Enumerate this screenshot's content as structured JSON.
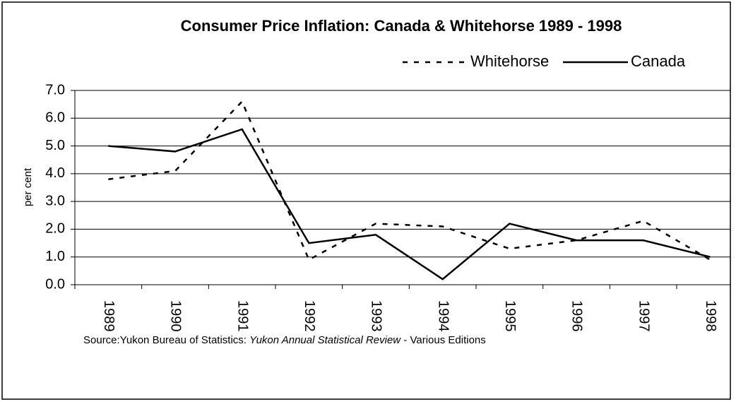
{
  "chart_data": {
    "type": "line",
    "title": "Consumer Price Inflation: Canada & Whitehorse 1989 - 1998",
    "y_label": "per cent",
    "categories": [
      "1989",
      "1990",
      "1991",
      "1992",
      "1993",
      "1994",
      "1995",
      "1996",
      "1997",
      "1998"
    ],
    "series": [
      {
        "name": "Whitehorse",
        "color": "#000000",
        "dash": "dashed",
        "values": [
          3.8,
          4.1,
          6.6,
          0.9,
          2.2,
          2.1,
          1.3,
          1.6,
          2.3,
          0.9
        ]
      },
      {
        "name": "Canada",
        "color": "#000000",
        "dash": "solid",
        "values": [
          5.0,
          4.8,
          5.6,
          1.5,
          1.8,
          0.2,
          2.2,
          1.6,
          1.6,
          1.0
        ]
      }
    ],
    "ylim": [
      0,
      7
    ],
    "yticks": [
      {
        "value": 0,
        "label": "0.0"
      },
      {
        "value": 1,
        "label": "1.0"
      },
      {
        "value": 2,
        "label": "2.0"
      },
      {
        "value": 3,
        "label": "3.0"
      },
      {
        "value": 4,
        "label": "4.0"
      },
      {
        "value": 5,
        "label": "5.0"
      },
      {
        "value": 6,
        "label": "6.0"
      },
      {
        "value": 7,
        "label": "7.0"
      }
    ],
    "grid": true,
    "legend": "top-right",
    "source": {
      "prefix": "Source:Yukon Bureau of Statistics: ",
      "title": "Yukon Annual Statistical Review",
      "suffix": " - Various Editions"
    }
  }
}
